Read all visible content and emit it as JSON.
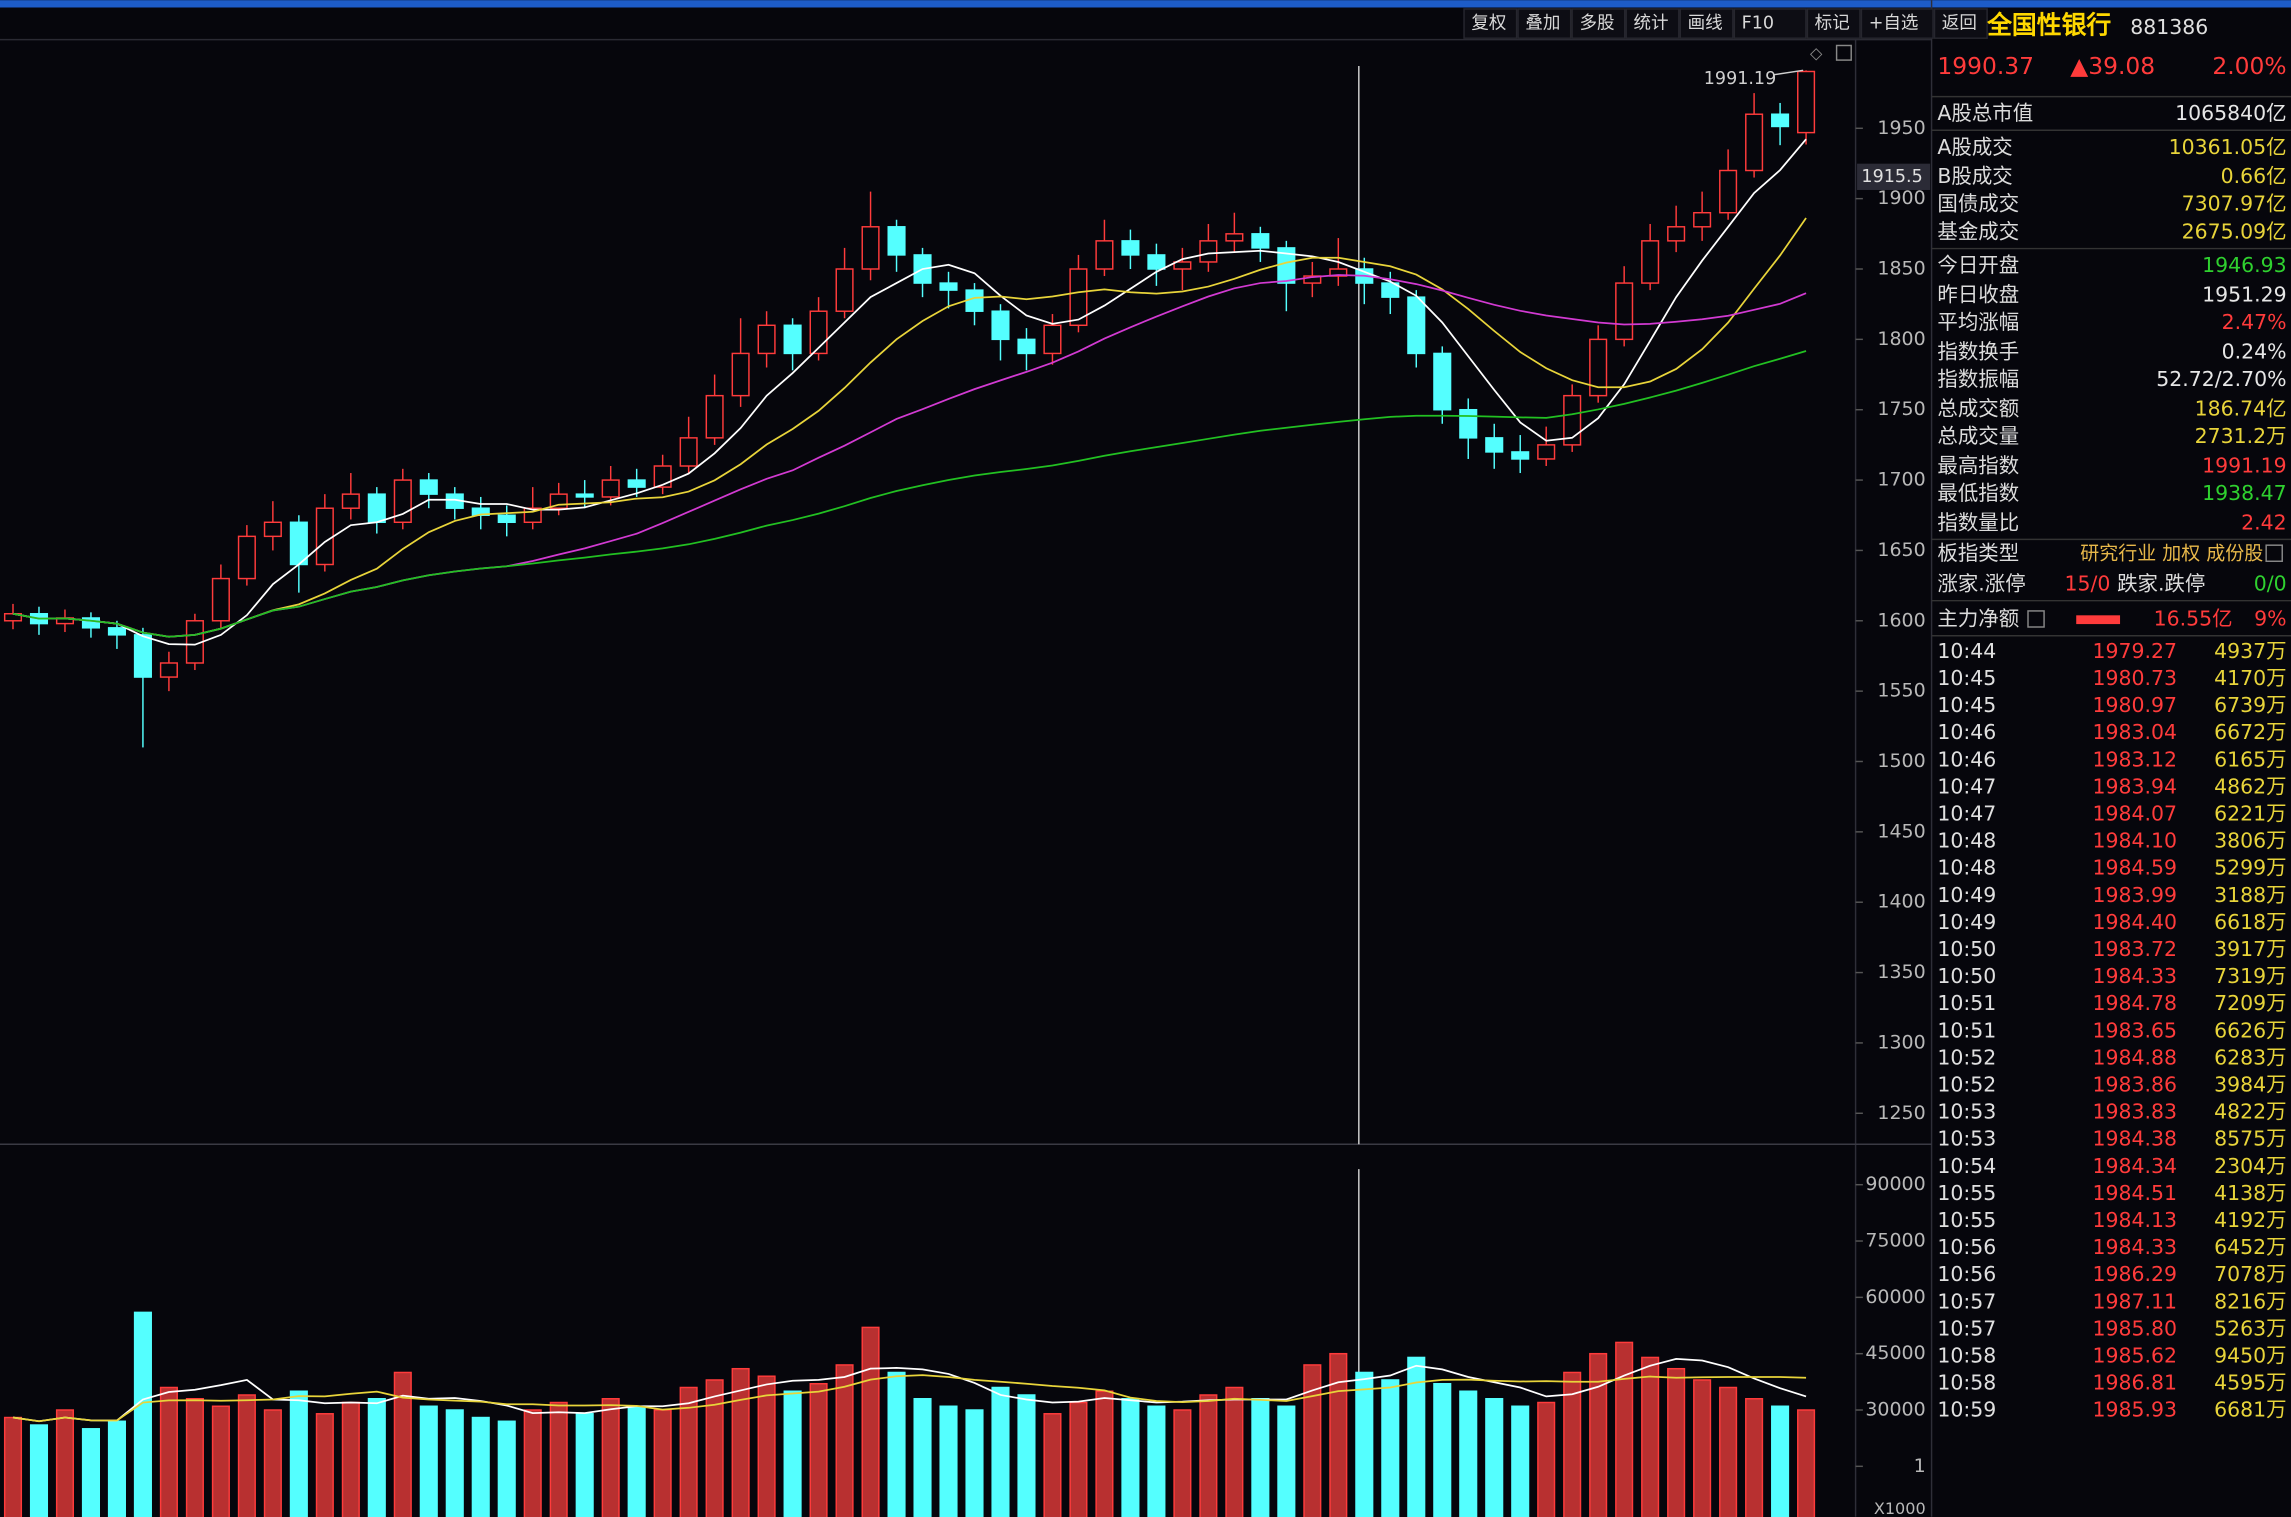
{
  "toolbar": [
    "复权",
    "叠加",
    "多股",
    "统计",
    "画线",
    "F10",
    "标记",
    "+自选",
    "返回"
  ],
  "chart_data": [
    {
      "type": "candlestick",
      "ylim": [
        1228,
        2013
      ],
      "yticks": [
        1250,
        1300,
        1350,
        1400,
        1450,
        1500,
        1550,
        1600,
        1650,
        1700,
        1750,
        1800,
        1850,
        1900,
        1950
      ],
      "cursor_value": 1915.5,
      "annotation": "1991.19",
      "ma_colors": [
        "#ffffff",
        "#e8d43a",
        "#d23ad2",
        "#22c022"
      ],
      "open": [
        1600,
        1605,
        1598,
        1602,
        1595,
        1590,
        1560,
        1570,
        1600,
        1630,
        1660,
        1670,
        1640,
        1680,
        1690,
        1670,
        1700,
        1690,
        1680,
        1675,
        1670,
        1680,
        1690,
        1688,
        1700,
        1695,
        1710,
        1730,
        1760,
        1790,
        1810,
        1790,
        1820,
        1850,
        1880,
        1860,
        1840,
        1835,
        1820,
        1800,
        1790,
        1810,
        1850,
        1870,
        1860,
        1850,
        1855,
        1870,
        1875,
        1865,
        1840,
        1845,
        1850,
        1840,
        1830,
        1790,
        1750,
        1730,
        1720,
        1715,
        1725,
        1760,
        1800,
        1840,
        1870,
        1880,
        1890,
        1920,
        1960,
        1946.93
      ],
      "high": [
        1612,
        1610,
        1608,
        1606,
        1600,
        1595,
        1578,
        1605,
        1640,
        1668,
        1685,
        1675,
        1690,
        1705,
        1695,
        1708,
        1705,
        1695,
        1688,
        1682,
        1695,
        1698,
        1700,
        1710,
        1708,
        1718,
        1745,
        1775,
        1815,
        1820,
        1815,
        1830,
        1865,
        1905,
        1885,
        1865,
        1848,
        1840,
        1825,
        1808,
        1818,
        1860,
        1885,
        1878,
        1868,
        1865,
        1882,
        1890,
        1880,
        1870,
        1855,
        1872,
        1858,
        1848,
        1835,
        1795,
        1758,
        1740,
        1732,
        1738,
        1768,
        1810,
        1852,
        1882,
        1895,
        1905,
        1935,
        1975,
        1968,
        1991.19
      ],
      "low": [
        1594,
        1590,
        1592,
        1588,
        1580,
        1510,
        1550,
        1565,
        1595,
        1625,
        1650,
        1620,
        1635,
        1672,
        1662,
        1665,
        1680,
        1672,
        1665,
        1660,
        1665,
        1675,
        1680,
        1682,
        1688,
        1690,
        1705,
        1725,
        1752,
        1780,
        1778,
        1785,
        1815,
        1842,
        1848,
        1830,
        1822,
        1810,
        1785,
        1778,
        1782,
        1805,
        1845,
        1850,
        1838,
        1835,
        1848,
        1862,
        1855,
        1820,
        1830,
        1838,
        1825,
        1818,
        1780,
        1740,
        1715,
        1708,
        1705,
        1710,
        1720,
        1755,
        1795,
        1835,
        1862,
        1870,
        1885,
        1915,
        1938,
        1938.47
      ],
      "close": [
        1605,
        1598,
        1602,
        1595,
        1590,
        1560,
        1570,
        1600,
        1630,
        1660,
        1670,
        1640,
        1680,
        1690,
        1670,
        1700,
        1690,
        1680,
        1675,
        1670,
        1680,
        1690,
        1688,
        1700,
        1695,
        1710,
        1730,
        1760,
        1790,
        1810,
        1790,
        1820,
        1850,
        1880,
        1860,
        1840,
        1835,
        1820,
        1800,
        1790,
        1810,
        1850,
        1870,
        1860,
        1850,
        1855,
        1870,
        1875,
        1865,
        1840,
        1845,
        1850,
        1840,
        1830,
        1790,
        1750,
        1730,
        1720,
        1715,
        1725,
        1760,
        1800,
        1840,
        1870,
        1880,
        1890,
        1920,
        1960,
        1951.29,
        1990.37
      ]
    },
    {
      "type": "bar",
      "ylim": [
        0,
        100000
      ],
      "yticks": [
        {
          "value": 15000,
          "label": "1"
        },
        30000,
        45000,
        60000,
        75000,
        90000
      ],
      "unit_label": "X1000",
      "ma_colors": [
        "#ffffff",
        "#e8d43a"
      ],
      "values": [
        28000,
        26000,
        30000,
        25000,
        27000,
        56000,
        36000,
        33000,
        31000,
        34000,
        30000,
        35000,
        29000,
        32000,
        33000,
        40000,
        31000,
        30000,
        28000,
        27000,
        30000,
        32000,
        29000,
        33000,
        31000,
        30000,
        36000,
        38000,
        41000,
        39000,
        35000,
        37000,
        42000,
        52000,
        40000,
        33000,
        31000,
        30000,
        36000,
        34000,
        29000,
        32000,
        35000,
        33000,
        31000,
        30000,
        34000,
        36000,
        33000,
        31000,
        42000,
        45000,
        40000,
        38000,
        44000,
        37000,
        35000,
        33000,
        31000,
        32000,
        40000,
        45000,
        48000,
        44000,
        41000,
        38000,
        36000,
        33000,
        31000,
        30000
      ]
    }
  ],
  "panel": {
    "name": "全国性银行",
    "code": "881386",
    "price": "1990.37",
    "change": "▲39.08",
    "pct": "2.00%",
    "stats": [
      [
        "A股总市值",
        "1065840亿"
      ],
      [
        "A股成交",
        "10361.05亿"
      ],
      [
        "B股成交",
        "0.66亿"
      ],
      [
        "国债成交",
        "7307.97亿"
      ],
      [
        "基金成交",
        "2675.09亿"
      ],
      [
        "今日开盘",
        "1946.93"
      ],
      [
        "昨日收盘",
        "1951.29"
      ],
      [
        "平均涨幅",
        "2.47%"
      ],
      [
        "指数换手",
        "0.24%"
      ],
      [
        "指数振幅",
        "52.72/2.70%"
      ],
      [
        "总成交额",
        "186.74亿"
      ],
      [
        "总成交量",
        "2731.2万"
      ],
      [
        "最高指数",
        "1991.19"
      ],
      [
        "最低指数",
        "1938.47"
      ],
      [
        "指数量比",
        "2.42"
      ]
    ],
    "type_label": "板指类型",
    "type_value": "研究行业 加权 成份股",
    "up_label": "涨家.涨停",
    "up_value": "15/0",
    "down_label": "跌家.跌停",
    "down_value": "0/0",
    "net_label": "主力净额",
    "net_value": "16.55亿",
    "net_pct": "9%",
    "ticks": [
      [
        "10:44",
        "1979.27",
        "4937万"
      ],
      [
        "10:45",
        "1980.73",
        "4170万"
      ],
      [
        "10:45",
        "1980.97",
        "6739万"
      ],
      [
        "10:46",
        "1983.04",
        "6672万"
      ],
      [
        "10:46",
        "1983.12",
        "6165万"
      ],
      [
        "10:47",
        "1983.94",
        "4862万"
      ],
      [
        "10:47",
        "1984.07",
        "6221万"
      ],
      [
        "10:48",
        "1984.10",
        "3806万"
      ],
      [
        "10:48",
        "1984.59",
        "5299万"
      ],
      [
        "10:49",
        "1983.99",
        "3188万"
      ],
      [
        "10:49",
        "1984.40",
        "6618万"
      ],
      [
        "10:50",
        "1983.72",
        "3917万"
      ],
      [
        "10:50",
        "1984.33",
        "7319万"
      ],
      [
        "10:51",
        "1984.78",
        "7209万"
      ],
      [
        "10:51",
        "1983.65",
        "6626万"
      ],
      [
        "10:52",
        "1984.88",
        "6283万"
      ],
      [
        "10:52",
        "1983.86",
        "3984万"
      ],
      [
        "10:53",
        "1983.83",
        "4822万"
      ],
      [
        "10:53",
        "1984.38",
        "8575万"
      ],
      [
        "10:54",
        "1984.34",
        "2304万"
      ],
      [
        "10:55",
        "1984.51",
        "4138万"
      ],
      [
        "10:55",
        "1984.13",
        "4192万"
      ],
      [
        "10:56",
        "1984.33",
        "6452万"
      ],
      [
        "10:56",
        "1986.29",
        "7078万"
      ],
      [
        "10:57",
        "1987.11",
        "8216万"
      ],
      [
        "10:57",
        "1985.80",
        "5263万"
      ],
      [
        "10:58",
        "1985.62",
        "9450万"
      ],
      [
        "10:58",
        "1986.81",
        "4595万"
      ],
      [
        "10:59",
        "1985.93",
        "6681万"
      ]
    ]
  }
}
